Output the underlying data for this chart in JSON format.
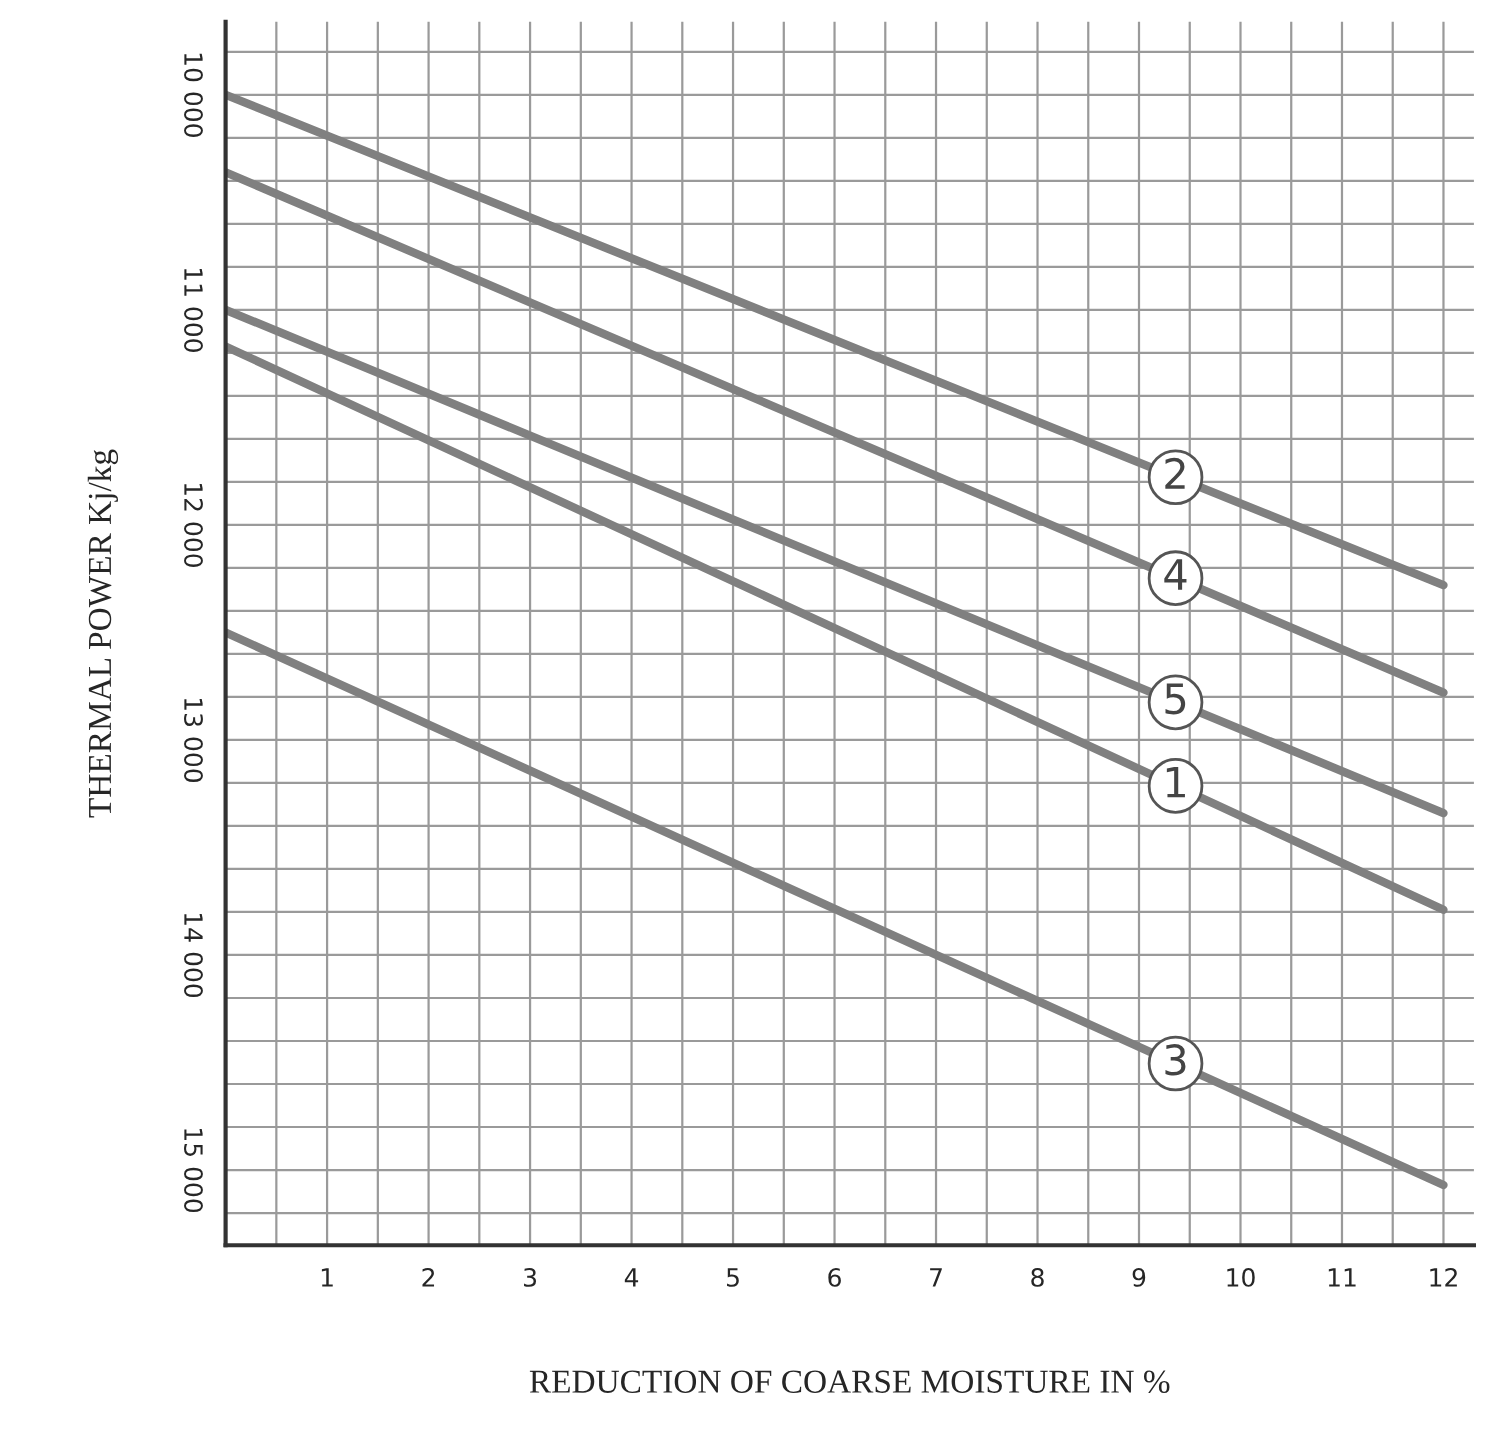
{
  "chart_data": {
    "type": "line",
    "xlabel": "REDUCTION OF COARSE MOISTURE IN %",
    "ylabel": "THERMAL POWER Kj/kg",
    "x": [
      0,
      12
    ],
    "series": [
      {
        "name": "2",
        "color": "#808080",
        "values": [
          10000,
          12280
        ]
      },
      {
        "name": "4",
        "color": "#808080",
        "values": [
          10360,
          12780
        ]
      },
      {
        "name": "5",
        "color": "#808080",
        "values": [
          11000,
          13340
        ]
      },
      {
        "name": "1",
        "color": "#808080",
        "values": [
          11170,
          13790
        ]
      },
      {
        "name": "3",
        "color": "#808080",
        "values": [
          12500,
          15070
        ]
      }
    ],
    "xlim": [
      0,
      12.3
    ],
    "ylim": [
      15350,
      9660
    ],
    "xticks": [
      1,
      2,
      3,
      4,
      5,
      6,
      7,
      8,
      9,
      10,
      11,
      12
    ],
    "yticks": [
      {
        "value": 10000,
        "label": "10 000"
      },
      {
        "value": 11000,
        "label": "11 000"
      },
      {
        "value": 12000,
        "label": "12 000"
      },
      {
        "value": 13000,
        "label": "13 000"
      },
      {
        "value": 14000,
        "label": "14 000"
      },
      {
        "value": 15000,
        "label": "15 000"
      }
    ],
    "grid": true,
    "marker": "none",
    "line_style": "solid"
  }
}
